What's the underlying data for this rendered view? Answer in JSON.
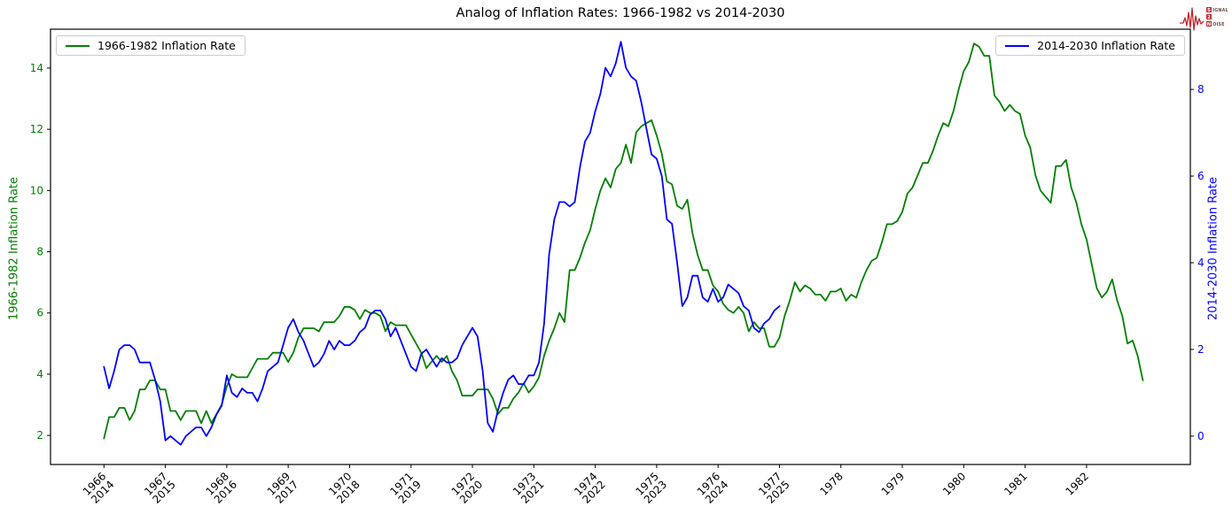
{
  "brand": {
    "line1_first": "S",
    "line1_rest": "IGNAL",
    "line2": "2",
    "line3_first": "N",
    "line3_rest": "OISE",
    "red": "#c0272d",
    "text_color": "#6b4f47"
  },
  "chart_data": {
    "type": "line",
    "title": "Analog of Inflation Rates: 1966-1982 vs 2014-2030",
    "grid": false,
    "x_axis": {
      "lim": [
        -0.87,
        17.69
      ],
      "tick_labels": [
        [
          "1966",
          "2014"
        ],
        [
          "1967",
          "2015"
        ],
        [
          "1968",
          "2016"
        ],
        [
          "1969",
          "2017"
        ],
        [
          "1970",
          "2018"
        ],
        [
          "1971",
          "2019"
        ],
        [
          "1972",
          "2020"
        ],
        [
          "1973",
          "2021"
        ],
        [
          "1974",
          "2022"
        ],
        [
          "1975",
          "2023"
        ],
        [
          "1976",
          "2024"
        ],
        [
          "1977",
          "2025"
        ],
        [
          "1978"
        ],
        [
          "1979"
        ],
        [
          "1980"
        ],
        [
          "1981"
        ],
        [
          "1982"
        ]
      ]
    },
    "left_axis": {
      "label": "1966-1982 Inflation Rate",
      "color": "#008000",
      "ticks": [
        2,
        4,
        6,
        8,
        10,
        12,
        14
      ],
      "lim": [
        1.05,
        15.27
      ]
    },
    "right_axis": {
      "label": "2014-2030 Inflation Rate",
      "color": "#0000ff",
      "ticks": [
        0,
        2,
        4,
        6,
        8
      ],
      "lim": [
        -0.655,
        9.39
      ]
    },
    "legend_left_position": "upper left",
    "legend_right_position": "upper right",
    "series": [
      {
        "id": "1966-1982",
        "name": "1966-1982 Inflation Rate",
        "color": "#008000",
        "axis": "left",
        "start_year": 1966,
        "frequency": "monthly",
        "monthly_values": [
          1.9,
          2.6,
          2.6,
          2.9,
          2.9,
          2.5,
          2.8,
          3.5,
          3.5,
          3.8,
          3.8,
          3.5,
          3.5,
          2.8,
          2.8,
          2.5,
          2.8,
          2.8,
          2.8,
          2.4,
          2.8,
          2.4,
          2.7,
          3.0,
          3.6,
          4.0,
          3.9,
          3.9,
          3.9,
          4.2,
          4.5,
          4.5,
          4.5,
          4.7,
          4.7,
          4.7,
          4.4,
          4.7,
          5.2,
          5.5,
          5.5,
          5.5,
          5.4,
          5.7,
          5.7,
          5.7,
          5.9,
          6.2,
          6.2,
          6.1,
          5.8,
          6.1,
          6.0,
          6.0,
          5.9,
          5.4,
          5.7,
          5.6,
          5.6,
          5.6,
          5.3,
          5.0,
          4.7,
          4.2,
          4.4,
          4.6,
          4.4,
          4.6,
          4.1,
          3.8,
          3.3,
          3.3,
          3.3,
          3.5,
          3.5,
          3.5,
          3.2,
          2.7,
          2.9,
          2.9,
          3.2,
          3.4,
          3.7,
          3.4,
          3.6,
          3.9,
          4.6,
          5.1,
          5.5,
          6.0,
          5.7,
          7.4,
          7.4,
          7.8,
          8.3,
          8.7,
          9.4,
          10.0,
          10.4,
          10.1,
          10.7,
          10.9,
          11.5,
          10.9,
          11.9,
          12.1,
          12.2,
          12.3,
          11.8,
          11.2,
          10.3,
          10.2,
          9.5,
          9.4,
          9.7,
          8.6,
          7.9,
          7.4,
          7.4,
          6.9,
          6.7,
          6.3,
          6.1,
          6.0,
          6.2,
          6.0,
          5.4,
          5.7,
          5.5,
          5.5,
          4.9,
          4.9,
          5.2,
          5.9,
          6.4,
          7.0,
          6.7,
          6.9,
          6.8,
          6.6,
          6.6,
          6.4,
          6.7,
          6.7,
          6.8,
          6.4,
          6.6,
          6.5,
          7.0,
          7.4,
          7.7,
          7.8,
          8.3,
          8.9,
          8.9,
          9.0,
          9.3,
          9.9,
          10.1,
          10.5,
          10.9,
          10.9,
          11.3,
          11.8,
          12.2,
          12.1,
          12.6,
          13.3,
          13.9,
          14.2,
          14.8,
          14.7,
          14.4,
          14.4,
          13.1,
          12.9,
          12.6,
          12.8,
          12.6,
          12.5,
          11.8,
          11.4,
          10.5,
          10.0,
          9.8,
          9.6,
          10.8,
          10.8,
          11.0,
          10.1,
          9.6,
          8.9,
          8.4,
          7.6,
          6.8,
          6.5,
          6.7,
          7.1,
          6.4,
          5.9,
          5.0,
          5.1,
          4.6,
          3.8
        ]
      },
      {
        "id": "2014-2030",
        "name": "2014-2030 Inflation Rate",
        "color": "#0000ff",
        "axis": "right",
        "start_year": 2014,
        "frequency": "monthly",
        "monthly_values": [
          1.6,
          1.1,
          1.5,
          2.0,
          2.1,
          2.1,
          2.0,
          1.7,
          1.7,
          1.7,
          1.3,
          0.8,
          -0.1,
          0.0,
          -0.1,
          -0.2,
          0.0,
          0.1,
          0.2,
          0.2,
          0.0,
          0.2,
          0.5,
          0.7,
          1.4,
          1.0,
          0.9,
          1.1,
          1.0,
          1.0,
          0.8,
          1.1,
          1.5,
          1.6,
          1.7,
          2.1,
          2.5,
          2.7,
          2.4,
          2.2,
          1.9,
          1.6,
          1.7,
          1.9,
          2.2,
          2.0,
          2.2,
          2.1,
          2.1,
          2.2,
          2.4,
          2.5,
          2.8,
          2.9,
          2.9,
          2.7,
          2.3,
          2.5,
          2.2,
          1.9,
          1.6,
          1.5,
          1.9,
          2.0,
          1.8,
          1.6,
          1.8,
          1.7,
          1.7,
          1.8,
          2.1,
          2.3,
          2.5,
          2.3,
          1.5,
          0.3,
          0.1,
          0.6,
          1.0,
          1.3,
          1.4,
          1.2,
          1.2,
          1.4,
          1.4,
          1.7,
          2.6,
          4.2,
          5.0,
          5.4,
          5.4,
          5.3,
          5.4,
          6.2,
          6.8,
          7.0,
          7.5,
          7.9,
          8.5,
          8.3,
          8.6,
          9.1,
          8.5,
          8.3,
          8.2,
          7.7,
          7.1,
          6.5,
          6.4,
          6.0,
          5.0,
          4.9,
          4.0,
          3.0,
          3.2,
          3.7,
          3.7,
          3.2,
          3.1,
          3.4,
          3.1,
          3.2,
          3.5,
          3.4,
          3.3,
          3.0,
          2.9,
          2.5,
          2.4,
          2.6,
          2.7,
          2.9,
          3.0
        ]
      }
    ]
  }
}
